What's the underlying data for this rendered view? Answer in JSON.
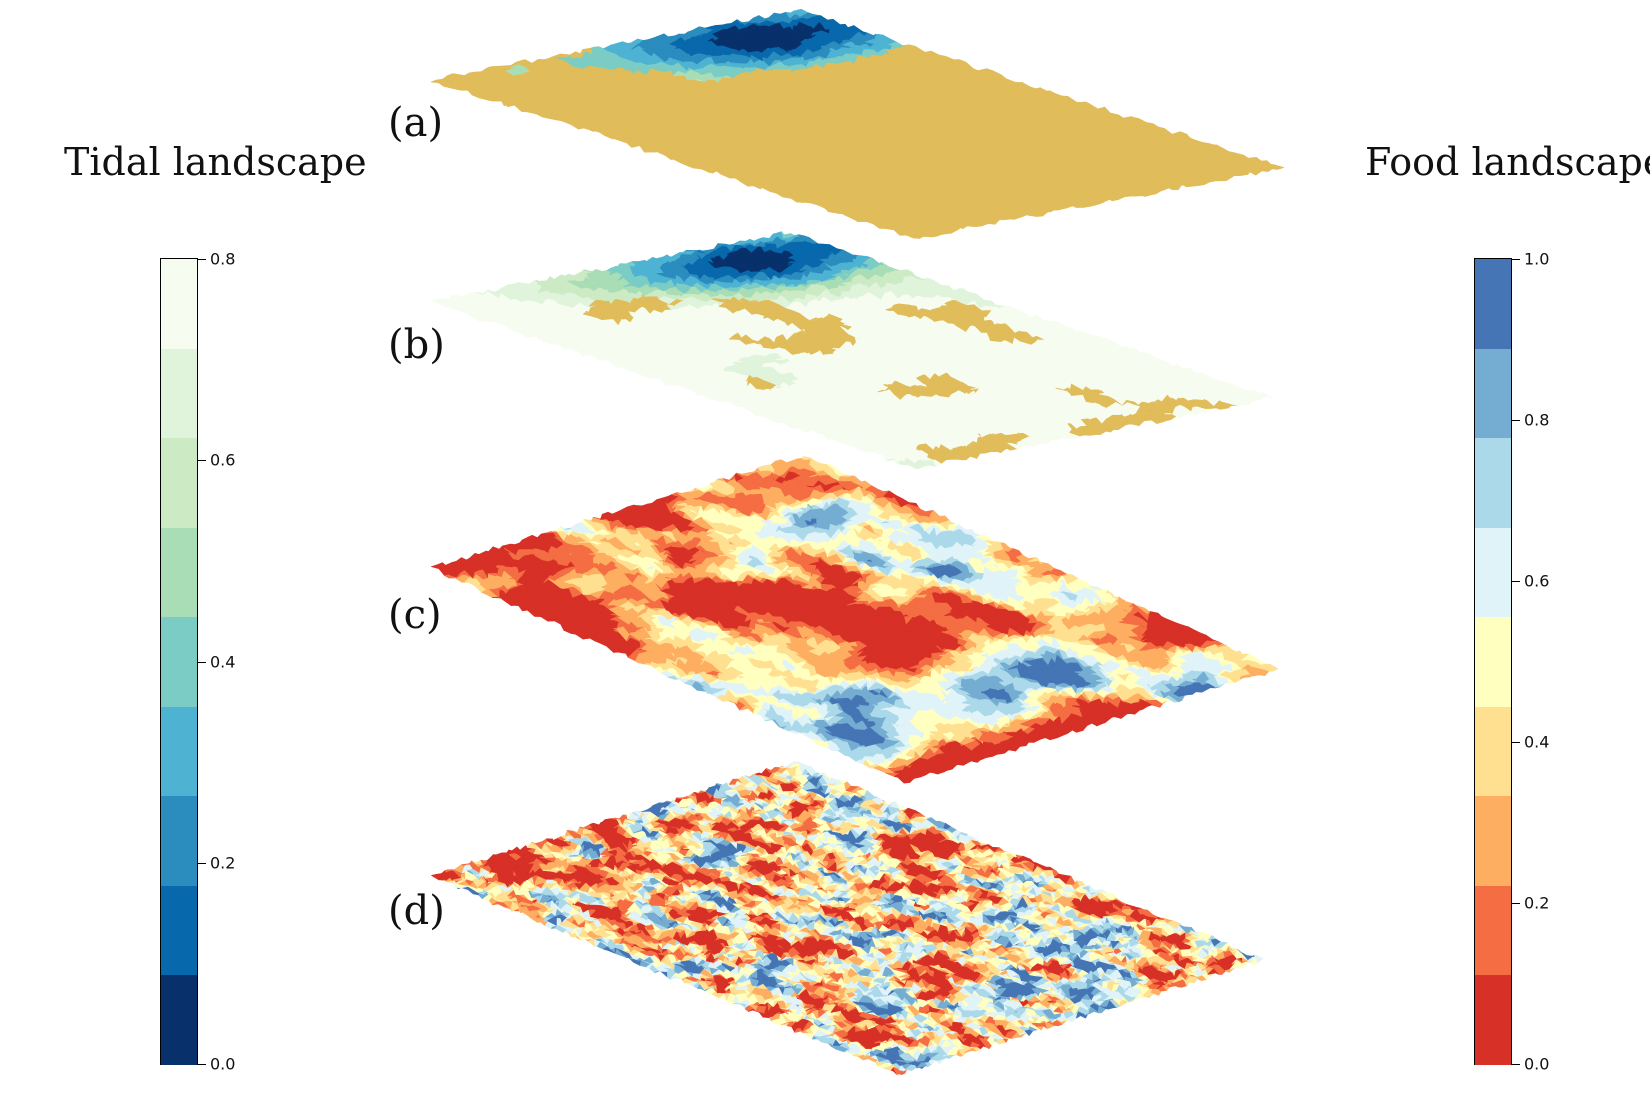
{
  "tidal_legend": {
    "title": "Tidal landscape",
    "ticks": [
      "0.0",
      "0.2",
      "0.4",
      "0.6",
      "0.8"
    ],
    "tick_values": [
      0.0,
      0.2,
      0.4,
      0.6,
      0.8
    ],
    "range": [
      0.0,
      0.8
    ],
    "colors": [
      "#08306b",
      "#0868ac",
      "#2b8cbe",
      "#4eb3d3",
      "#7bccc4",
      "#a8ddb5",
      "#ccebc5",
      "#e0f3db",
      "#f7fcf0"
    ]
  },
  "food_legend": {
    "title": "Food landscape",
    "ticks": [
      "0.0",
      "0.2",
      "0.4",
      "0.6",
      "0.8",
      "1.0"
    ],
    "tick_values": [
      0.0,
      0.2,
      0.4,
      0.6,
      0.8,
      1.0
    ],
    "range": [
      0.0,
      1.0
    ],
    "colors": [
      "#d73027",
      "#f46d43",
      "#fdae61",
      "#fee090",
      "#ffffbf",
      "#e0f3f8",
      "#abd9e9",
      "#74add1",
      "#4575b4"
    ]
  },
  "panels": [
    {
      "label": "(a)",
      "type": "tidal-flooded",
      "flood_color": "#e0bc5a"
    },
    {
      "label": "(b)",
      "type": "tidal-partial",
      "flood_color": "#e0bc5a"
    },
    {
      "label": "(c)",
      "type": "food-smooth"
    },
    {
      "label": "(d)",
      "type": "food-rough"
    }
  ]
}
